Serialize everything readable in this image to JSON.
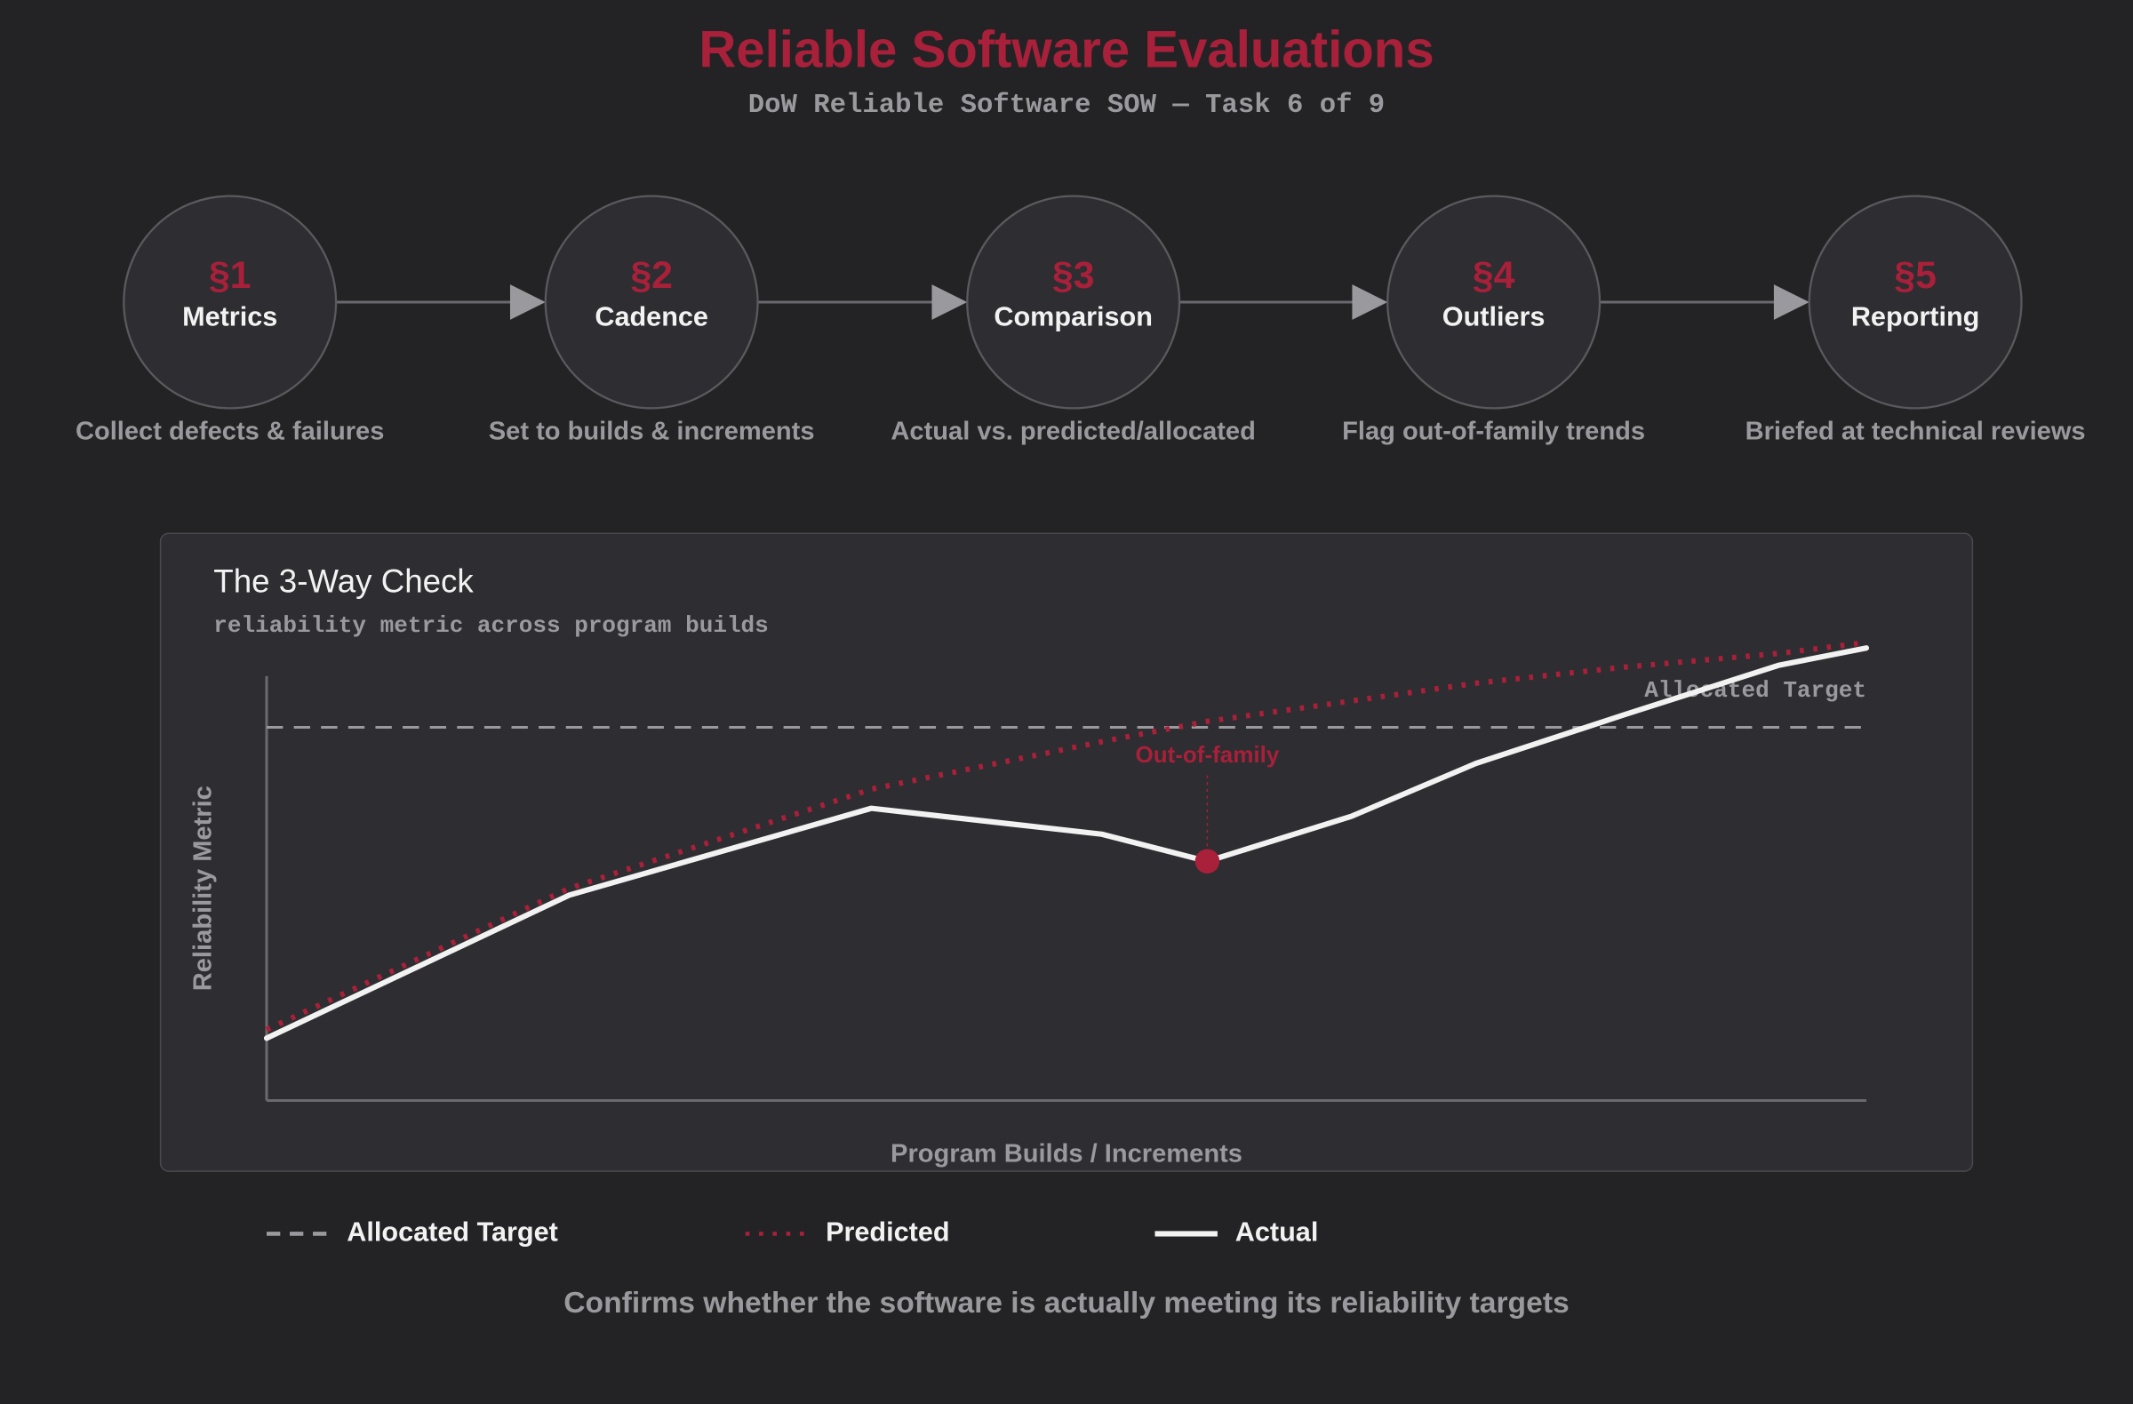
{
  "header": {
    "title": "Reliable Software Evaluations",
    "subtitle": "DoW Reliable Software SOW — Task 6 of 9"
  },
  "steps": [
    {
      "num": "§1",
      "label": "Metrics",
      "desc": "Collect defects & failures"
    },
    {
      "num": "§2",
      "label": "Cadence",
      "desc": "Set to builds & increments"
    },
    {
      "num": "§3",
      "label": "Comparison",
      "desc": "Actual vs. predicted/allocated"
    },
    {
      "num": "§4",
      "label": "Outliers",
      "desc": "Flag out-of-family trends"
    },
    {
      "num": "§5",
      "label": "Reporting",
      "desc": "Briefed at technical reviews"
    }
  ],
  "chart_data": {
    "type": "line",
    "title": "The 3-Way Check",
    "subtitle": "reliability metric across program builds",
    "y_label": "Reliability Metric",
    "x_label": "Program Builds / Increments",
    "xlim": [
      0,
      100
    ],
    "ylim": [
      0,
      110
    ],
    "x": [
      0,
      18.9,
      37.8,
      52.2,
      58.8,
      67.8,
      75.6,
      84.9,
      94.5,
      100
    ],
    "reference_line": {
      "name": "Allocated Target",
      "value": 88,
      "color": "#9a9a9e",
      "style": "dashed"
    },
    "series": [
      {
        "name": "Predicted",
        "color": "#a8203a",
        "style": "dotted",
        "values": [
          16.7,
          50.0,
          73.4,
          84.6,
          89.4,
          94.2,
          98.4,
          102.2,
          105.4,
          108.0
        ]
      },
      {
        "name": "Actual",
        "color": "#f2f2f2",
        "style": "solid",
        "values": [
          14.7,
          48.4,
          68.9,
          62.8,
          56.4,
          67.0,
          79.5,
          91.0,
          102.6,
          106.7
        ]
      }
    ],
    "annotations": [
      {
        "text": "Out-of-family",
        "x": 58.8,
        "y": 56.4,
        "color": "#a8203a"
      }
    ]
  },
  "footer": "Confirms whether the software is actually meeting its reliability targets"
}
